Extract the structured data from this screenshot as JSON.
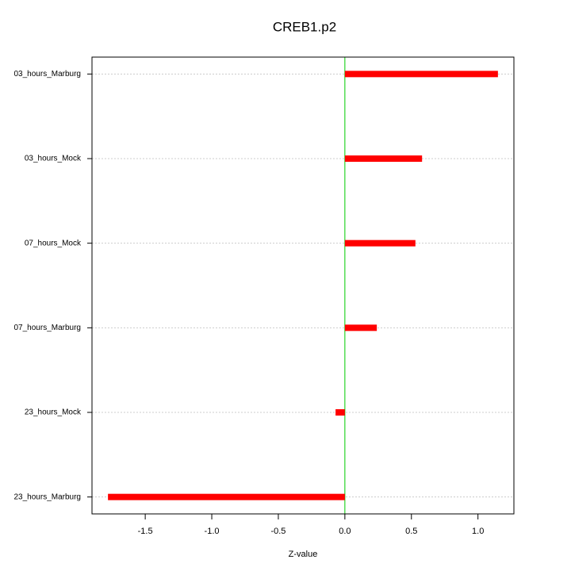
{
  "chart_data": {
    "type": "bar",
    "orientation": "horizontal",
    "title": "CREB1.p2",
    "x_label": "Z-value",
    "categories": [
      "03_hours_Marburg",
      "03_hours_Mock",
      "07_hours_Mock",
      "07_hours_Marburg",
      "23_hours_Mock",
      "23_hours_Marburg"
    ],
    "values": [
      1.15,
      0.58,
      0.53,
      0.24,
      -0.07,
      -1.78
    ],
    "color": "#ff0000",
    "zero_line_color": "#00cc00",
    "xlim": [
      -1.9,
      1.27
    ],
    "xticks": [
      -1.5,
      {
        "value": -1,
        "label": "-1.0"
      },
      -0.5,
      {
        "value": 0,
        "label": "0.0"
      },
      0.5,
      {
        "value": 1,
        "label": "1.0"
      }
    ],
    "grid": true
  }
}
